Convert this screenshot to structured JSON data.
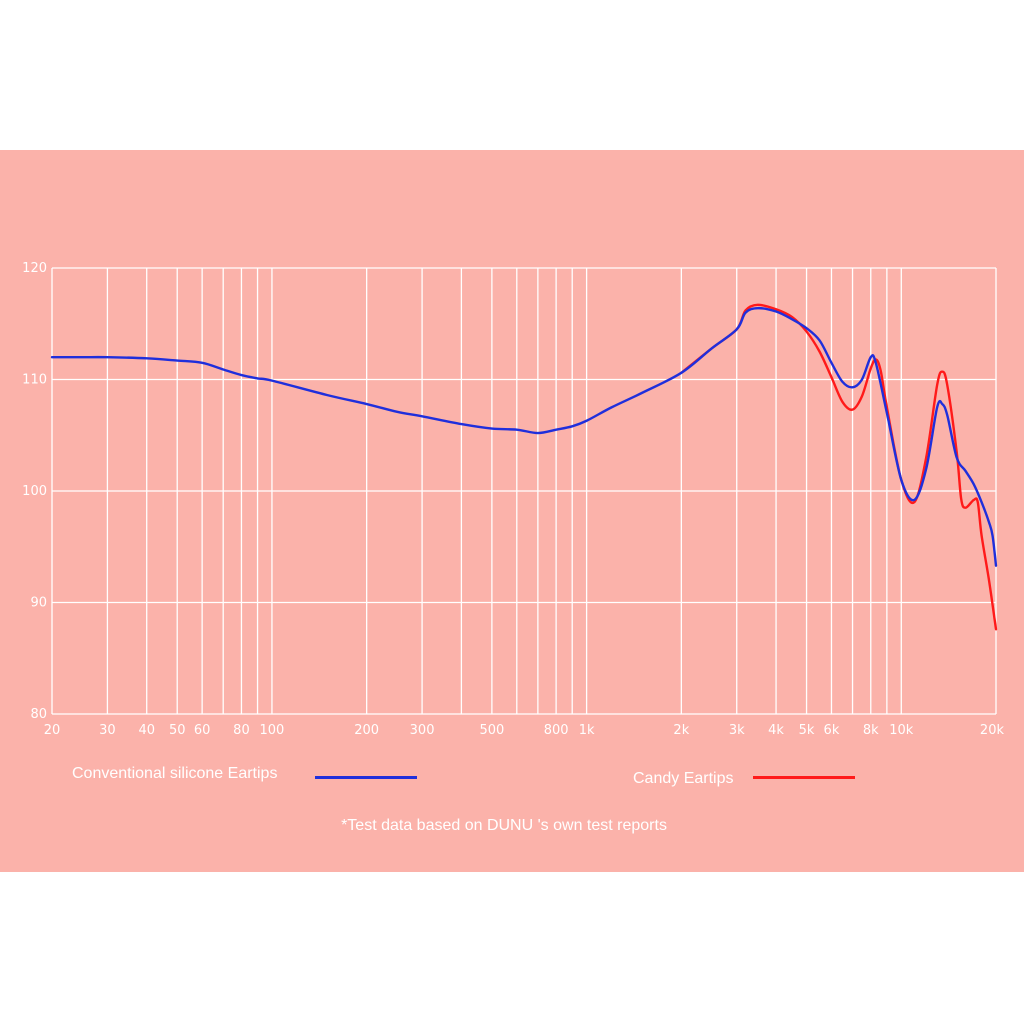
{
  "colors": {
    "background": "#fbb2aa",
    "grid": "#ffffff",
    "text": "#ffffff"
  },
  "legend": {
    "items": [
      {
        "label": "Conventional silicone Eartips",
        "color": "#1f2fdc"
      },
      {
        "label": "Candy Eartips",
        "color": "#ff1a1a"
      }
    ]
  },
  "footnote": "*Test data based on DUNU 's own test reports",
  "chart_data": {
    "type": "line",
    "x_scale": "log",
    "xlim": [
      20,
      20000
    ],
    "ylim": [
      80,
      120
    ],
    "grid": true,
    "legend_position": "bottom",
    "x_ticks": [
      {
        "value": 20,
        "label": "20"
      },
      {
        "value": 30,
        "label": "30"
      },
      {
        "value": 40,
        "label": "40"
      },
      {
        "value": 50,
        "label": "50"
      },
      {
        "value": 60,
        "label": "60"
      },
      {
        "value": 80,
        "label": "80"
      },
      {
        "value": 100,
        "label": "100"
      },
      {
        "value": 200,
        "label": "200"
      },
      {
        "value": 300,
        "label": "300"
      },
      {
        "value": 500,
        "label": "500"
      },
      {
        "value": 800,
        "label": "800"
      },
      {
        "value": 1000,
        "label": "1k"
      },
      {
        "value": 2000,
        "label": "2k"
      },
      {
        "value": 3000,
        "label": "3k"
      },
      {
        "value": 4000,
        "label": "4k"
      },
      {
        "value": 5000,
        "label": "5k"
      },
      {
        "value": 6000,
        "label": "6k"
      },
      {
        "value": 8000,
        "label": "8k"
      },
      {
        "value": 10000,
        "label": "10k"
      },
      {
        "value": 20000,
        "label": "20k"
      }
    ],
    "x_gridlines": [
      20,
      30,
      40,
      50,
      60,
      70,
      80,
      90,
      100,
      200,
      300,
      400,
      500,
      600,
      700,
      800,
      900,
      1000,
      2000,
      3000,
      4000,
      5000,
      6000,
      7000,
      8000,
      9000,
      10000,
      20000
    ],
    "y_ticks": [
      80,
      90,
      100,
      110,
      120
    ],
    "series": [
      {
        "name": "Conventional silicone Eartips",
        "color": "#1f2fdc",
        "points": [
          [
            20,
            112.0
          ],
          [
            25,
            112.0
          ],
          [
            30,
            112.0
          ],
          [
            40,
            111.9
          ],
          [
            50,
            111.7
          ],
          [
            60,
            111.5
          ],
          [
            70,
            110.9
          ],
          [
            80,
            110.4
          ],
          [
            90,
            110.1
          ],
          [
            100,
            109.9
          ],
          [
            150,
            108.6
          ],
          [
            200,
            107.8
          ],
          [
            250,
            107.1
          ],
          [
            300,
            106.7
          ],
          [
            400,
            106.0
          ],
          [
            500,
            105.6
          ],
          [
            600,
            105.5
          ],
          [
            700,
            105.2
          ],
          [
            800,
            105.5
          ],
          [
            900,
            105.8
          ],
          [
            1000,
            106.3
          ],
          [
            1200,
            107.5
          ],
          [
            1500,
            108.8
          ],
          [
            2000,
            110.6
          ],
          [
            2500,
            112.8
          ],
          [
            3000,
            114.5
          ],
          [
            3200,
            116.0
          ],
          [
            3500,
            116.4
          ],
          [
            4000,
            116.1
          ],
          [
            4500,
            115.4
          ],
          [
            5000,
            114.6
          ],
          [
            5500,
            113.5
          ],
          [
            6000,
            111.5
          ],
          [
            6500,
            109.8
          ],
          [
            7000,
            109.3
          ],
          [
            7500,
            110.0
          ],
          [
            8000,
            112.0
          ],
          [
            8300,
            111.5
          ],
          [
            9000,
            107.0
          ],
          [
            10000,
            101.0
          ],
          [
            11000,
            99.2
          ],
          [
            12000,
            102.0
          ],
          [
            13000,
            107.5
          ],
          [
            13500,
            107.8
          ],
          [
            14000,
            106.8
          ],
          [
            15000,
            103.0
          ],
          [
            16000,
            101.8
          ],
          [
            17000,
            100.6
          ],
          [
            18000,
            99.0
          ],
          [
            19000,
            97.2
          ],
          [
            19500,
            96.0
          ],
          [
            20000,
            93.3
          ]
        ]
      },
      {
        "name": "Candy Eartips",
        "color": "#ff1a1a",
        "points": [
          [
            2000,
            110.6
          ],
          [
            2500,
            112.8
          ],
          [
            3000,
            114.5
          ],
          [
            3200,
            116.2
          ],
          [
            3500,
            116.7
          ],
          [
            4000,
            116.3
          ],
          [
            4500,
            115.6
          ],
          [
            5000,
            114.3
          ],
          [
            5500,
            112.5
          ],
          [
            6000,
            110.2
          ],
          [
            6500,
            108.0
          ],
          [
            7000,
            107.3
          ],
          [
            7500,
            108.5
          ],
          [
            8000,
            111.0
          ],
          [
            8300,
            111.8
          ],
          [
            8600,
            110.8
          ],
          [
            9000,
            107.5
          ],
          [
            10000,
            101.0
          ],
          [
            11000,
            99.0
          ],
          [
            12000,
            103.0
          ],
          [
            13000,
            109.5
          ],
          [
            13500,
            110.7
          ],
          [
            14000,
            109.5
          ],
          [
            15000,
            103.5
          ],
          [
            15500,
            99.3
          ],
          [
            16000,
            98.5
          ],
          [
            17000,
            99.2
          ],
          [
            17500,
            99.0
          ],
          [
            18000,
            96.0
          ],
          [
            19000,
            92.0
          ],
          [
            20000,
            87.6
          ]
        ]
      }
    ]
  }
}
